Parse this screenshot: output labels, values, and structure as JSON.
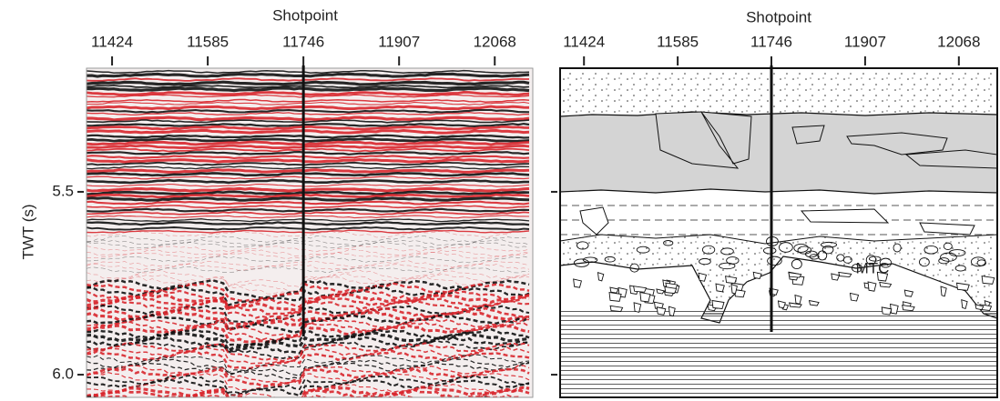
{
  "left_panel": {
    "x_label": "Shotpoint",
    "xticks": [
      11424,
      11585,
      11746,
      11907,
      12068
    ],
    "xlim": [
      11381,
      12132
    ],
    "y_label": "TWT (s)",
    "yticks": [
      5.5,
      {
        "value": 6,
        "label": "6.0"
      }
    ],
    "ylim": [
      5.162,
      6.062
    ]
  },
  "right_panel": {
    "x_label": "Shotpoint",
    "xticks": [
      11424,
      11585,
      11746,
      11907,
      12068
    ],
    "xlim": [
      11383,
      12134
    ],
    "yticks": [
      5.5,
      {
        "value": 6,
        "label": "6.0"
      }
    ],
    "ylim": [
      5.162,
      6.062
    ],
    "annotation": "MTC"
  }
}
